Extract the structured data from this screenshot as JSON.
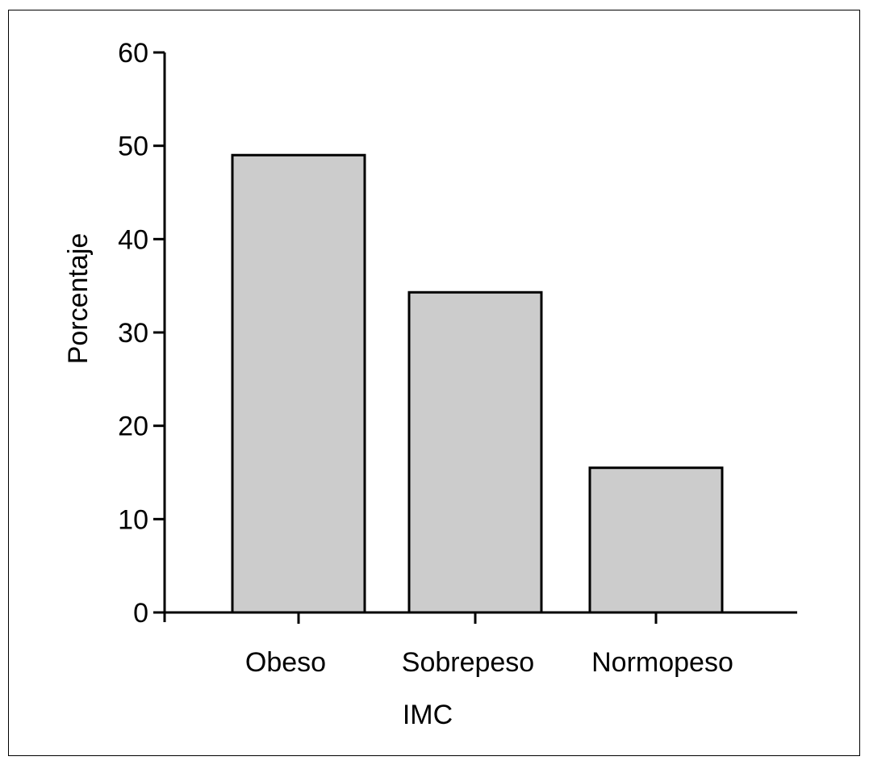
{
  "chart_data": {
    "type": "bar",
    "title": "",
    "xlabel": "IMC",
    "ylabel": "Porcentaje",
    "categories": [
      "Obeso",
      "Sobrepeso",
      "Normopeso"
    ],
    "values": [
      49,
      34.3,
      15.5
    ],
    "ylim": [
      0,
      60
    ],
    "yticks": [
      0,
      10,
      20,
      30,
      40,
      50,
      60
    ],
    "ytick_labels": [
      "0",
      "10",
      "20",
      "30",
      "40",
      "50",
      "60"
    ],
    "grid": false,
    "legend": "none",
    "bar_color": "#cccccc",
    "edge_color": "#000000"
  }
}
